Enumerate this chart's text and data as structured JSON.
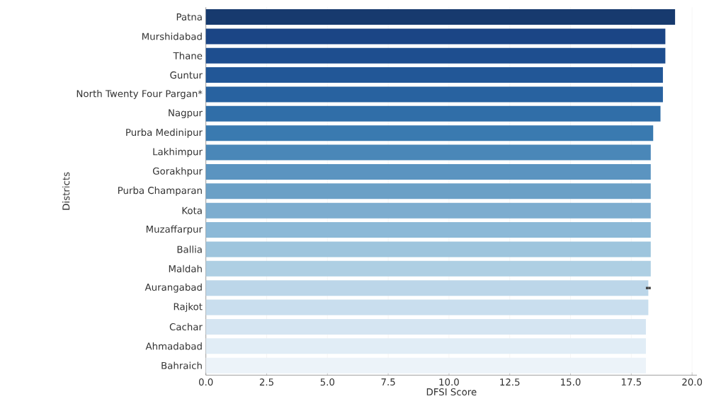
{
  "chart_data": {
    "type": "bar",
    "orientation": "horizontal",
    "xlabel": "DFSI Score",
    "ylabel": "Districts",
    "categories": [
      "Patna",
      "Murshidabad",
      "Thane",
      "Guntur",
      "North Twenty Four Pargan*",
      "Nagpur",
      "Purba Medinipur",
      "Lakhimpur",
      "Gorakhpur",
      "Purba Champaran",
      "Kota",
      "Muzaffarpur",
      "Ballia",
      "Maldah",
      "Aurangabad",
      "Rajkot",
      "Cachar",
      "Ahmadabad",
      "Bahraich"
    ],
    "values": [
      19.3,
      18.9,
      18.9,
      18.8,
      18.8,
      18.7,
      18.4,
      18.3,
      18.3,
      18.3,
      18.3,
      18.3,
      18.3,
      18.3,
      18.2,
      18.2,
      18.1,
      18.1,
      18.1
    ],
    "errors": [
      null,
      null,
      null,
      null,
      null,
      null,
      null,
      null,
      null,
      null,
      null,
      null,
      null,
      null,
      0.1,
      null,
      null,
      null,
      null
    ],
    "colors": [
      "#173a6e",
      "#1b4585",
      "#1e4e8f",
      "#225797",
      "#2862a0",
      "#306ea8",
      "#3a7ab0",
      "#4a87b8",
      "#5b94c0",
      "#6ba0c6",
      "#7dadcf",
      "#8cb9d7",
      "#9ec5dd",
      "#aecfe3",
      "#bcd6e9",
      "#c9deee",
      "#d5e5f2",
      "#e1edf6",
      "#ecf3f9"
    ],
    "xlim": [
      0,
      20.2
    ],
    "xticks": [
      {
        "value": 0,
        "label": "0.0"
      },
      {
        "value": 2.5,
        "label": "2.5"
      },
      {
        "value": 5,
        "label": "5.0"
      },
      {
        "value": 7.5,
        "label": "7.5"
      },
      {
        "value": 10,
        "label": "10.0"
      },
      {
        "value": 12.5,
        "label": "12.5"
      },
      {
        "value": 15,
        "label": "15.0"
      },
      {
        "value": 17.5,
        "label": "17.5"
      },
      {
        "value": 20,
        "label": "20.0"
      }
    ],
    "grid": "x"
  }
}
